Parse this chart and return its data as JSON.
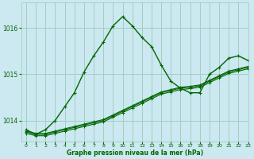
{
  "title": "Graphe pression niveau de la mer (hPa)",
  "background_color": "#cce8f0",
  "grid_color": "#99ccbb",
  "line_color": "#006600",
  "xlim": [
    -0.5,
    23
  ],
  "ylim": [
    1013.55,
    1016.55
  ],
  "yticks": [
    1014,
    1015,
    1016
  ],
  "xticks": [
    0,
    1,
    2,
    3,
    4,
    5,
    6,
    7,
    8,
    9,
    10,
    11,
    12,
    13,
    14,
    15,
    16,
    17,
    18,
    19,
    20,
    21,
    22,
    23
  ],
  "series_main": [
    1013.8,
    1013.7,
    1013.8,
    1014.0,
    1014.3,
    1014.6,
    1015.05,
    1015.4,
    1015.7,
    1016.05,
    1016.25,
    1016.05,
    1015.8,
    1015.6,
    1015.2,
    1014.85,
    1014.7,
    1014.6,
    1014.6,
    1015.0,
    1015.15,
    1015.35,
    1015.4,
    1015.3
  ],
  "series_diag1": [
    1013.75,
    1013.7,
    1013.7,
    1013.75,
    1013.8,
    1013.85,
    1013.9,
    1013.95,
    1014.0,
    1014.1,
    1014.2,
    1014.3,
    1014.4,
    1014.5,
    1014.6,
    1014.65,
    1014.7,
    1014.72,
    1014.75,
    1014.85,
    1014.95,
    1015.05,
    1015.1,
    1015.15
  ],
  "series_diag2": [
    1013.77,
    1013.72,
    1013.72,
    1013.77,
    1013.82,
    1013.87,
    1013.92,
    1013.97,
    1014.02,
    1014.12,
    1014.22,
    1014.32,
    1014.42,
    1014.52,
    1014.62,
    1014.67,
    1014.72,
    1014.74,
    1014.77,
    1014.87,
    1014.97,
    1015.07,
    1015.12,
    1015.17
  ],
  "series_diag3": [
    1013.72,
    1013.67,
    1013.67,
    1013.72,
    1013.77,
    1013.82,
    1013.87,
    1013.92,
    1013.97,
    1014.07,
    1014.17,
    1014.27,
    1014.37,
    1014.47,
    1014.57,
    1014.62,
    1014.67,
    1014.69,
    1014.72,
    1014.82,
    1014.92,
    1015.02,
    1015.07,
    1015.12
  ]
}
